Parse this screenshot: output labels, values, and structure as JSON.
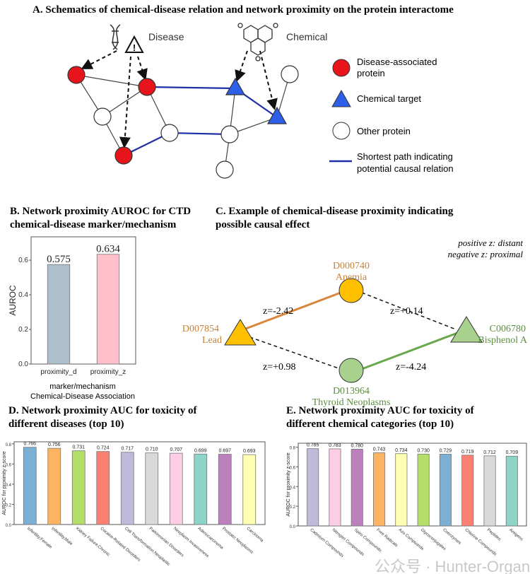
{
  "panel_a": {
    "title": "A. Schematics of chemical-disease relation and network proximity on the protein interactome",
    "disease_label": "Disease",
    "chemical_label": "Chemical",
    "legend": {
      "disease_protein": [
        "Disease-associated",
        "protein"
      ],
      "chemical_target": "Chemical target",
      "other_protein": "Other protein",
      "shortest_path": [
        "Shortest path indicating",
        "potential causal relation"
      ]
    },
    "colors": {
      "disease": "#e8141b",
      "target": "#2e5fe8",
      "path": "#1f2fa8"
    }
  },
  "panel_c": {
    "title": [
      "C. Example of chemical-disease proximity indicating",
      "possible causal effect"
    ],
    "note": [
      "positive z: distant",
      "negative z: proximal"
    ],
    "nodes": {
      "lead": {
        "id": "D007854",
        "name": "Lead"
      },
      "anemia": {
        "id": "D000740",
        "name": "Anemia"
      },
      "thyroid": {
        "id": "D013964",
        "name": "Thyroid Neoplasms"
      },
      "bisphenol": {
        "id": "C006780",
        "name": "Bisphenol A"
      }
    },
    "edges": {
      "lead_anemia": "z=-2.42",
      "anemia_bisphenol": "z=+0.14",
      "lead_thyroid": "z=+0.98",
      "thyroid_bisphenol": "z=-4.24"
    },
    "colors": {
      "chemical_disease_1": "#d9863a",
      "chemical_disease_2": "#6aa84f",
      "orange_node": "#ffc000",
      "green_node": "#a9d18e"
    }
  },
  "chart_data": [
    {
      "type": "bar",
      "title": [
        "B. Network proximity AUROC for CTD",
        "chemical-disease marker/mechanism"
      ],
      "categories": [
        "proximity_d",
        "proximity_z"
      ],
      "values": [
        0.575,
        0.634
      ],
      "colors": [
        "#aebfcc",
        "#ffc0cb"
      ],
      "xlabel": [
        "marker/mechanism",
        "Chemical-Disease Association"
      ],
      "ylabel": "AUROC",
      "ylim": [
        0,
        0.735
      ],
      "yticks": [
        "0.0",
        "0.2",
        "0.4",
        "0.6"
      ],
      "grid": false
    },
    {
      "type": "bar",
      "title": [
        "D. Network proximity AUC for toxicity of",
        "different diseases (top 10)"
      ],
      "categories": [
        "Infertility,Female",
        "Infertility,Male",
        "Kidney Failure,Chronic",
        "Cocaine-Related Disorders",
        "Cell Transformation,Neoplastic",
        "Parkinsonian Disorders",
        "Neoplasm Invasiveness",
        "Adenocarcinoma",
        "Prostatic Neoplasms",
        "Carcinoma"
      ],
      "values": [
        0.766,
        0.756,
        0.731,
        0.724,
        0.717,
        0.71,
        0.707,
        0.699,
        0.697,
        0.693
      ],
      "colors": [
        "#7bafd4",
        "#fdb462",
        "#b3de69",
        "#fb8072",
        "#bebada",
        "#d9d9d9",
        "#fccde5",
        "#8dd3c7",
        "#bc80bd",
        "#ffffb3"
      ],
      "ylabel": "AUROC for proximity z-score",
      "ylim": [
        0,
        0.82
      ],
      "yticks": [
        "0.0",
        "0.2",
        "0.4",
        "0.6",
        "0.8"
      ],
      "grid": false
    },
    {
      "type": "bar",
      "title": [
        "E. Network proximity AUC for toxicity of",
        "different chemical categories (top 10)"
      ],
      "categories": [
        "Cadmium Compounds",
        "Nitrogen Compounds",
        "Spiro Compounds",
        "Free Radicals",
        "Azo Compounds",
        "Glycoconjugates",
        "Coenzymes",
        "Chlorine Compounds",
        "Peptides",
        "Antigens"
      ],
      "values": [
        0.785,
        0.783,
        0.78,
        0.743,
        0.734,
        0.73,
        0.729,
        0.719,
        0.712,
        0.709
      ],
      "colors": [
        "#bebada",
        "#fccde5",
        "#bc80bd",
        "#fdb462",
        "#ffffb3",
        "#b3de69",
        "#7bafd4",
        "#fb8072",
        "#d9d9d9",
        "#8dd3c7"
      ],
      "ylabel": "AUROC for proximity z-score",
      "ylim": [
        0,
        0.84
      ],
      "yticks": [
        "0.0",
        "0.2",
        "0.4",
        "0.6",
        "0.8"
      ],
      "grid": false
    }
  ],
  "watermark": "公众号 · Hunter-Organs"
}
